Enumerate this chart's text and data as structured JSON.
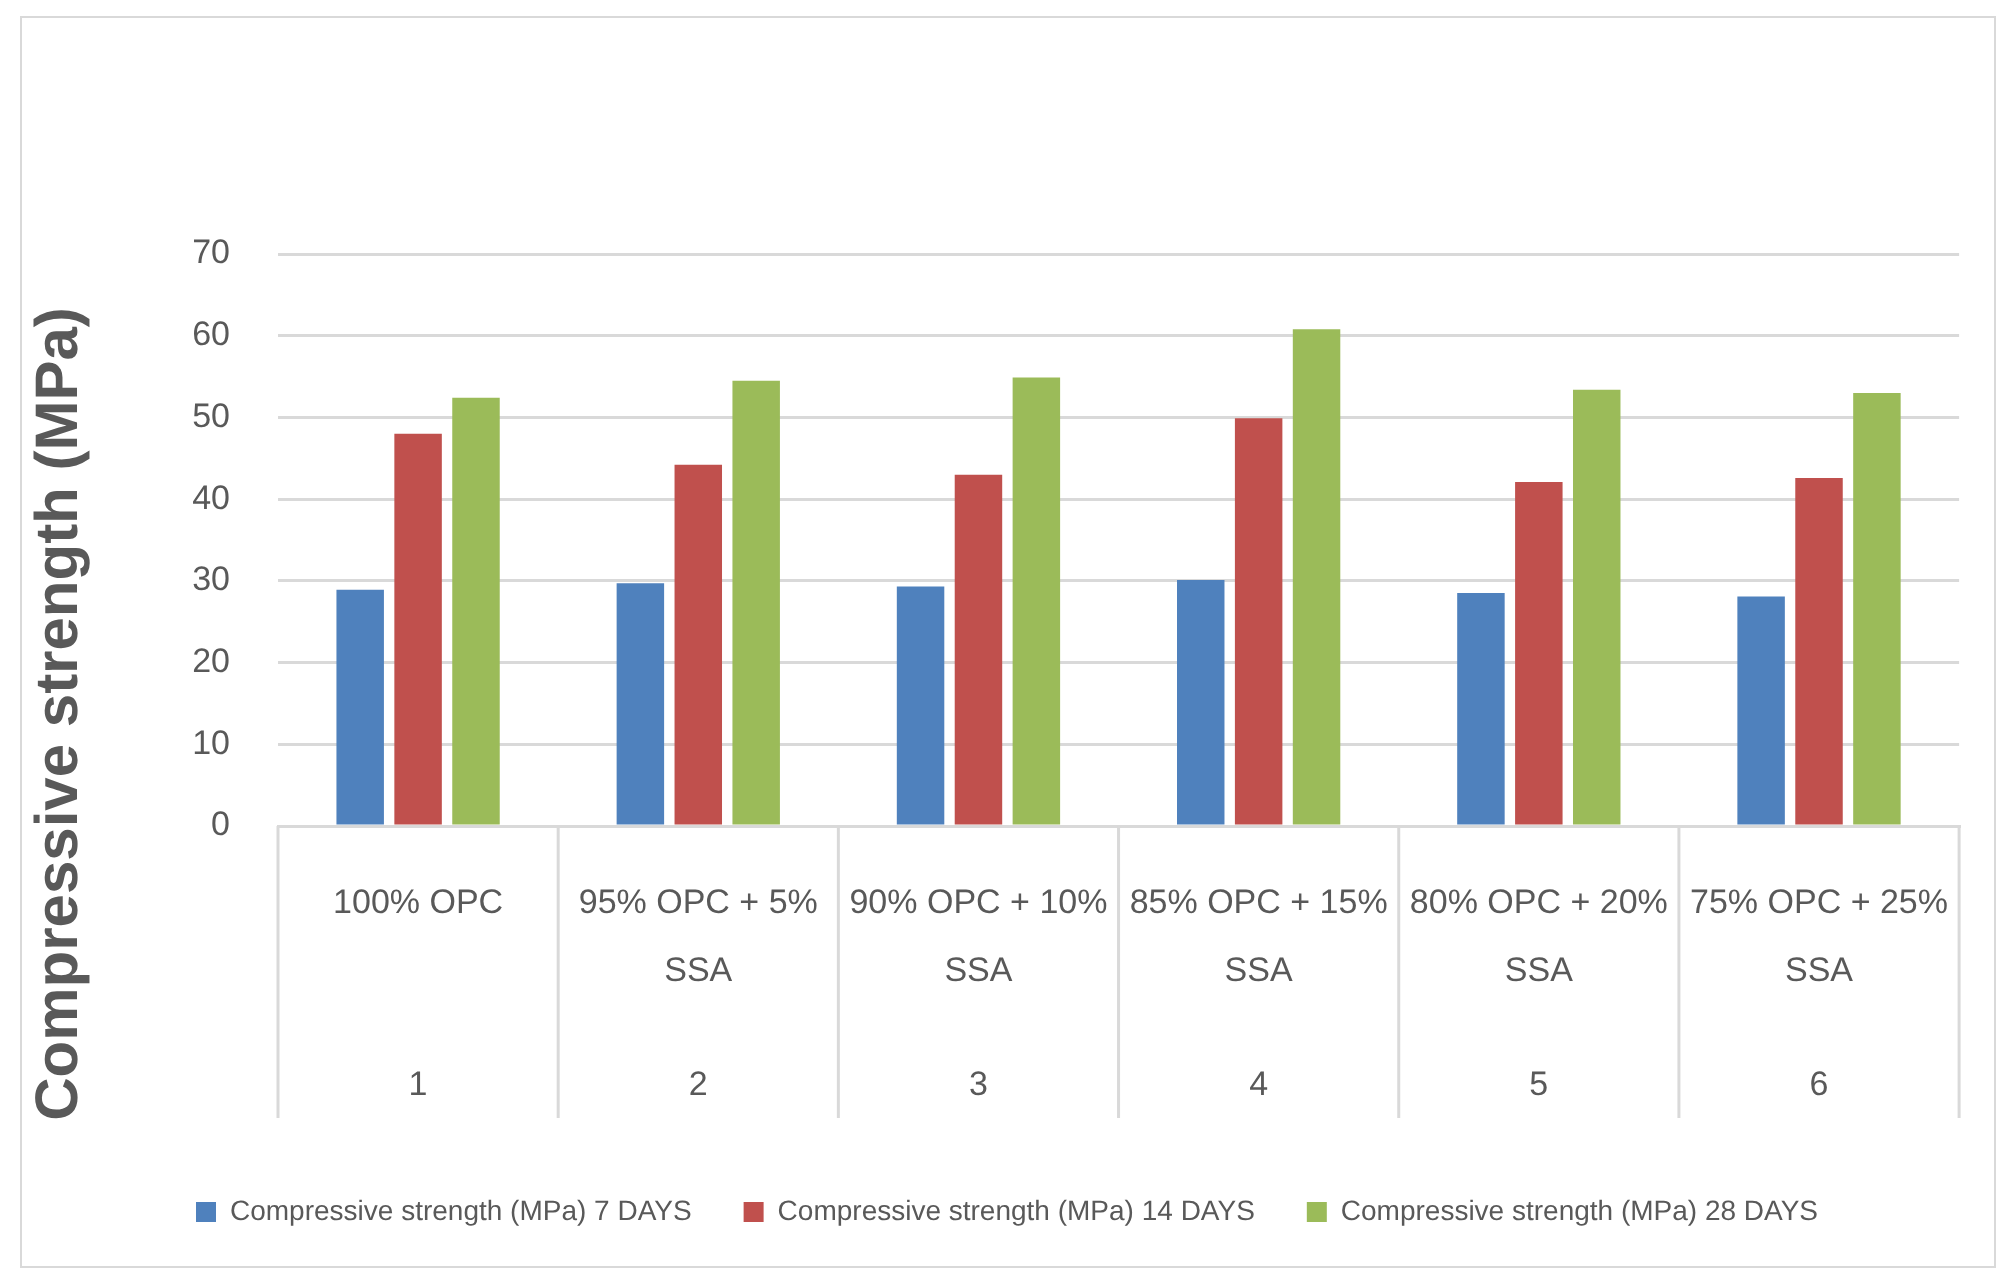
{
  "chart_data": {
    "type": "bar",
    "ylabel": "Compressive strength (MPa)",
    "categories": [
      "100% OPC",
      "95% OPC + 5% SSA",
      "90% OPC + 10% SSA",
      "85% OPC + 15% SSA",
      "80% OPC + 20% SSA",
      "75% OPC + 25% SSA"
    ],
    "series": [
      {
        "name": "Compressive strength (MPa) 7 DAYS",
        "color": "#4f81bd",
        "values": [
          28.9,
          29.7,
          29.3,
          30.1,
          28.5,
          28.1
        ]
      },
      {
        "name": "Compressive strength (MPa) 14 DAYS",
        "color": "#c0504d",
        "values": [
          48.0,
          44.2,
          43.0,
          49.9,
          42.1,
          42.6
        ]
      },
      {
        "name": "Compressive strength (MPa) 28 DAYS",
        "color": "#9bbb59",
        "values": [
          52.4,
          54.5,
          54.9,
          60.8,
          53.4,
          53.0
        ]
      }
    ],
    "ylim": [
      0,
      70
    ],
    "yticks": [
      0,
      10,
      20,
      30,
      40,
      50,
      60,
      70
    ],
    "grid": "y",
    "legend": "bottom",
    "annotations": [
      "1",
      "2",
      "3",
      "4",
      "5",
      "6"
    ]
  }
}
